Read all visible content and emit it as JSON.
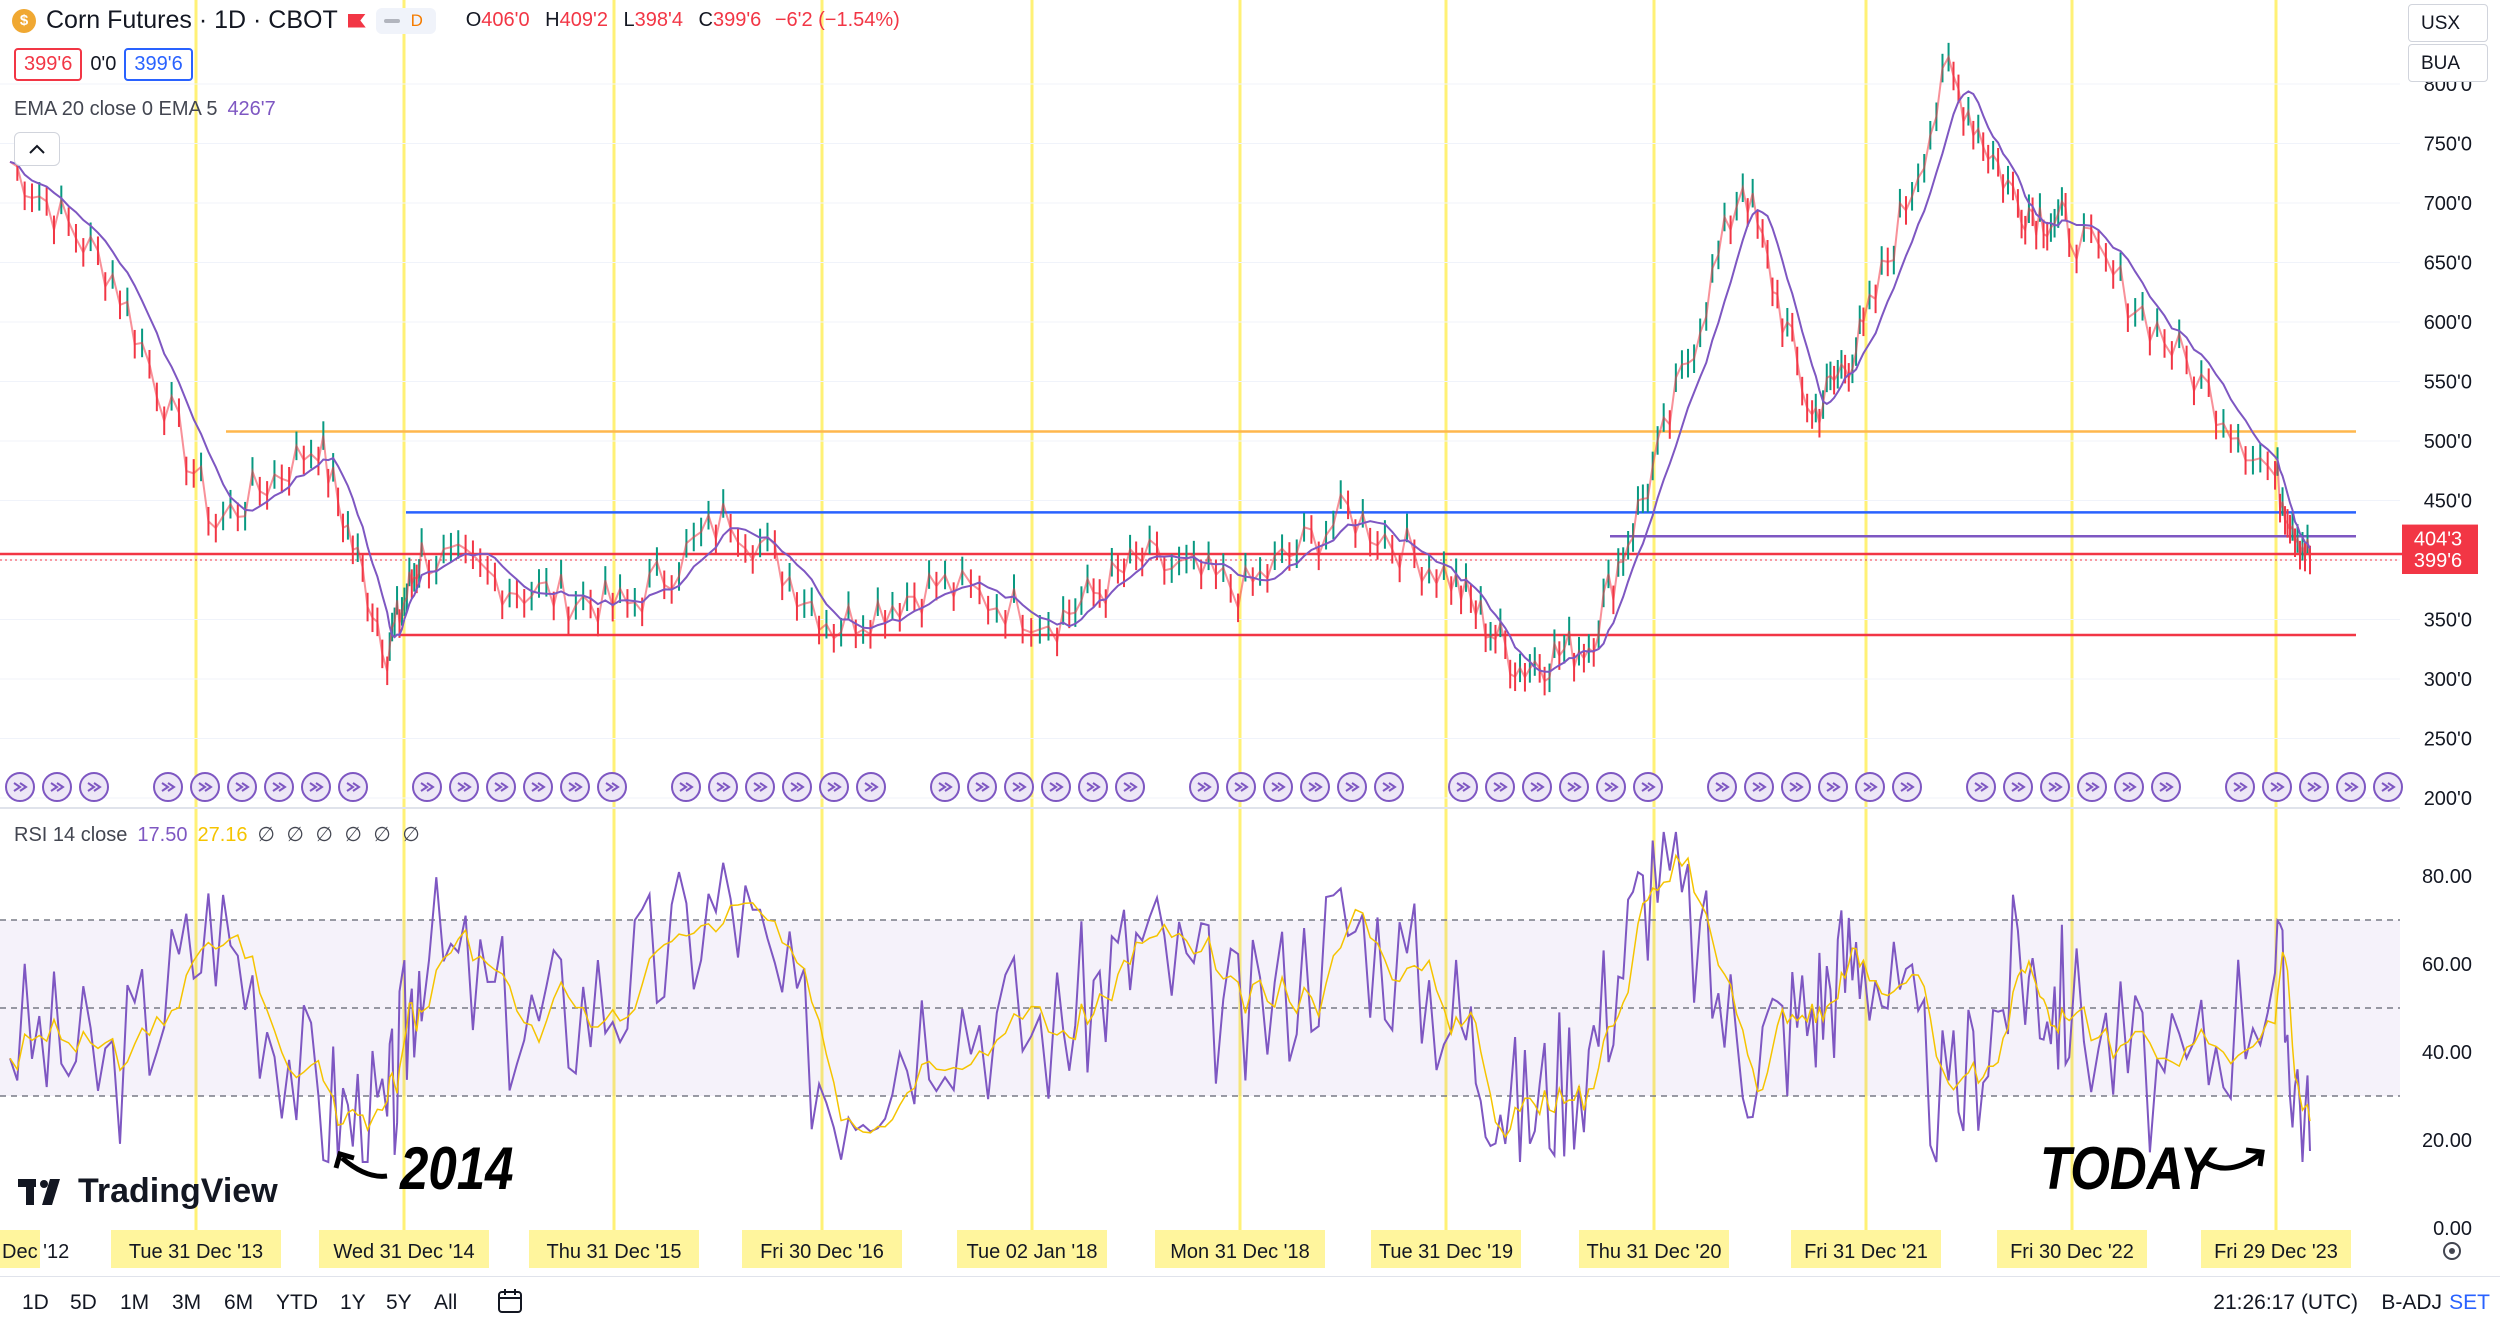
{
  "header": {
    "symbol_icon": "coin-icon",
    "title": "Corn Futures · 1D · CBOT",
    "flag_icon": "flag-icon",
    "toggle_label": "D",
    "ohlc": {
      "o_label": "O",
      "o": "406'0",
      "h_label": "H",
      "h": "409'2",
      "l_label": "L",
      "l": "398'4",
      "c_label": "C",
      "c": "399'6",
      "chg": "−6'2 (−1.54%)"
    },
    "bid": "399'6",
    "spread": "0'0",
    "ask": "399'6"
  },
  "ema_legend": {
    "label": "EMA 20 close 0 EMA 5",
    "value": "426'7"
  },
  "rsi_legend": {
    "label": "RSI 14 close",
    "value1": "17.50",
    "value2": "27.16",
    "extras": "∅ ∅ ∅ ∅ ∅ ∅"
  },
  "right_controls": {
    "currency": "USX",
    "unit": "BUA"
  },
  "price_scale": {
    "ticks": [
      "800'0",
      "750'0",
      "700'0",
      "650'0",
      "600'0",
      "550'0",
      "500'0",
      "450'0",
      "400'0",
      "350'0",
      "300'0",
      "250'0",
      "200'0"
    ],
    "badge_high": "404'3",
    "badge_last": "399'6"
  },
  "rsi_scale": {
    "ticks": [
      "80.00",
      "60.00",
      "40.00",
      "20.00",
      "0.00"
    ]
  },
  "time_axis": [
    "Dec '12",
    "Tue 31 Dec '13",
    "Wed 31 Dec '14",
    "Thu 31 Dec '15",
    "Fri 30 Dec '16",
    "Tue 02 Jan '18",
    "Mon 31 Dec '18",
    "Tue 31 Dec '19",
    "Thu 31 Dec '20",
    "Fri 31 Dec '21",
    "Fri 30 Dec '22",
    "Fri 29 Dec '23"
  ],
  "annotations": {
    "left": "2014",
    "right": "TODAY"
  },
  "branding": "TradingView",
  "bottom_bar": {
    "ranges": [
      "1D",
      "5D",
      "1M",
      "3M",
      "6M",
      "YTD",
      "1Y",
      "5Y",
      "All"
    ],
    "time": "21:26:17 (UTC)",
    "badj": "B-ADJ",
    "set": "SET"
  },
  "colors": {
    "up": "#089981",
    "down": "#f23645",
    "ema": "#7e57c2",
    "rsi": "#7e57c2",
    "rsi_ma": "#f5c400",
    "vline": "#fff176",
    "orange": "#ffb74d",
    "blue": "#2962ff",
    "red": "#f23645",
    "purple": "#7e57c2"
  },
  "chart_data": [
    {
      "type": "line",
      "title": "Corn Futures · 1D · CBOT",
      "x": [
        "2012-12",
        "2013-06",
        "2013-12",
        "2014-06",
        "2014-10",
        "2014-12",
        "2015-06",
        "2015-12",
        "2016-06",
        "2016-12",
        "2017-06",
        "2018-01",
        "2018-06",
        "2018-12",
        "2019-06",
        "2019-12",
        "2020-04",
        "2020-08",
        "2020-12",
        "2021-05",
        "2021-09",
        "2021-12",
        "2022-05",
        "2022-09",
        "2022-12",
        "2023-06",
        "2023-12",
        "2024-02"
      ],
      "series": [
        {
          "values": [
            735,
            640,
            430,
            500,
            325,
            405,
            375,
            360,
            440,
            345,
            380,
            350,
            400,
            375,
            440,
            385,
            310,
            330,
            485,
            720,
            520,
            590,
            810,
            700,
            680,
            580,
            470,
            400
          ]
        }
      ],
      "ylim": [
        200,
        820
      ],
      "reference_lines": [
        {
          "y": 508,
          "color": "orange"
        },
        {
          "y": 440,
          "color": "blue"
        },
        {
          "y": 420,
          "color": "purple"
        },
        {
          "y": 405,
          "color": "red"
        },
        {
          "y": 337,
          "color": "red"
        }
      ]
    },
    {
      "type": "line",
      "title": "RSI 14 close",
      "x": [
        "2012-12",
        "2013-06",
        "2013-12",
        "2014-06",
        "2014-10",
        "2014-12",
        "2015-06",
        "2015-12",
        "2016-06",
        "2016-12",
        "2017-06",
        "2018-01",
        "2018-06",
        "2018-12",
        "2019-06",
        "2019-12",
        "2020-04",
        "2020-08",
        "2020-12",
        "2021-05",
        "2021-09",
        "2021-12",
        "2022-05",
        "2022-09",
        "2022-12",
        "2023-06",
        "2023-12",
        "2024-02"
      ],
      "series": [
        {
          "values": [
            45,
            35,
            70,
            28,
            22,
            65,
            45,
            55,
            75,
            30,
            50,
            45,
            65,
            45,
            70,
            50,
            25,
            40,
            85,
            40,
            50,
            65,
            25,
            60,
            50,
            30,
            60,
            17.5
          ]
        }
      ],
      "ylim": [
        0,
        95
      ],
      "bands": [
        30,
        50,
        70
      ]
    }
  ]
}
